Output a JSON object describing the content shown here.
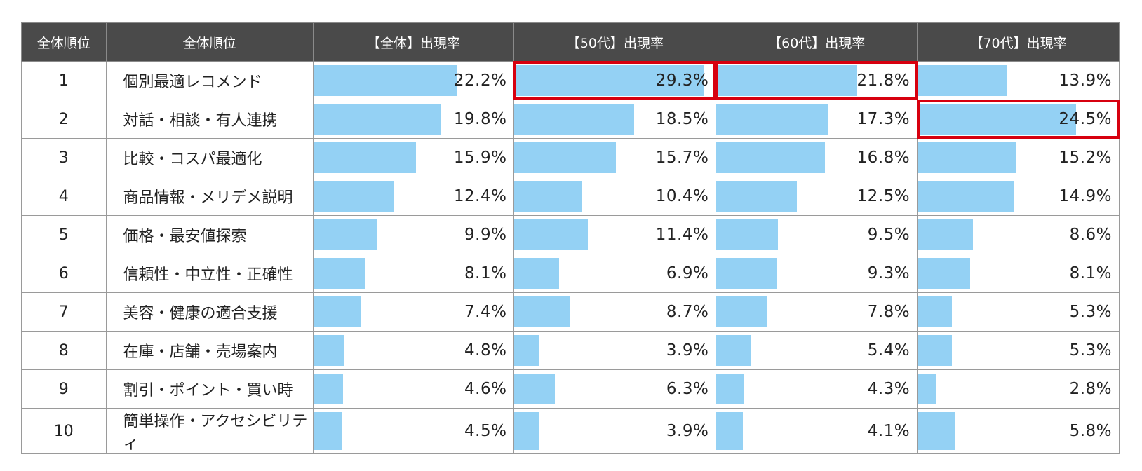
{
  "chart_data": {
    "type": "table",
    "headers": [
      "全体順位",
      "全体順位",
      "【全体】出現率",
      "【50代】出現率",
      "【60代】出現率",
      "【70代】出現率"
    ],
    "ranks": [
      "1",
      "2",
      "3",
      "4",
      "5",
      "6",
      "7",
      "8",
      "9",
      "10"
    ],
    "categories": [
      "個別最適レコメンド",
      "対話・相談・有人連携",
      "比較・コスパ最適化",
      "商品情報・メリデメ説明",
      "価格・最安値探索",
      "信頼性・中立性・正確性",
      "美容・健康の適合支援",
      "在庫・店舗・売場案内",
      "割引・ポイント・買い時",
      "簡単操作・アクセシビリティ"
    ],
    "series": [
      {
        "values": [
          22.2,
          19.8,
          15.9,
          12.4,
          9.9,
          8.1,
          7.4,
          4.8,
          4.6,
          4.5
        ],
        "labels": [
          "22.2%",
          "19.8%",
          "15.9%",
          "12.4%",
          "9.9%",
          "8.1%",
          "7.4%",
          "4.8%",
          "4.6%",
          "4.5%"
        ],
        "highlight": []
      },
      {
        "values": [
          29.3,
          18.5,
          15.7,
          10.4,
          11.4,
          6.9,
          8.7,
          3.9,
          6.3,
          3.9
        ],
        "labels": [
          "29.3%",
          "18.5%",
          "15.7%",
          "10.4%",
          "11.4%",
          "6.9%",
          "8.7%",
          "3.9%",
          "6.3%",
          "3.9%"
        ],
        "highlight": [
          0
        ]
      },
      {
        "values": [
          21.8,
          17.3,
          16.8,
          12.5,
          9.5,
          9.3,
          7.8,
          5.4,
          4.3,
          4.1
        ],
        "labels": [
          "21.8%",
          "17.3%",
          "16.8%",
          "12.5%",
          "9.5%",
          "9.3%",
          "7.8%",
          "5.4%",
          "4.3%",
          "4.1%"
        ],
        "highlight": [
          0
        ]
      },
      {
        "values": [
          13.9,
          24.5,
          15.2,
          14.9,
          8.6,
          8.1,
          5.3,
          5.3,
          2.8,
          5.8
        ],
        "labels": [
          "13.9%",
          "24.5%",
          "15.2%",
          "14.9%",
          "8.6%",
          "8.1%",
          "5.3%",
          "5.3%",
          "2.8%",
          "5.8%"
        ],
        "highlight": [
          1
        ]
      }
    ],
    "bar_max": 30,
    "colors": {
      "bar": "#94d1f4",
      "header_bg": "#4a4a4a",
      "header_text": "#ffffff",
      "highlight": "#d7000f",
      "grid": "#9a9a9a"
    }
  }
}
